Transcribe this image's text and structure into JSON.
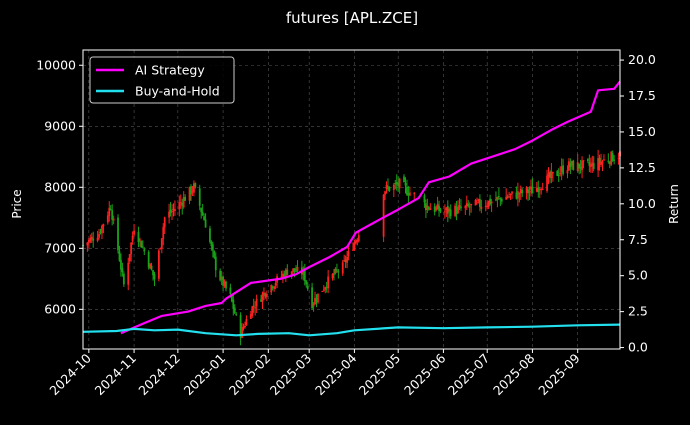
{
  "chart_data": {
    "type": "line",
    "title": "futures [APL.ZCE]",
    "ylabel": "Price",
    "y2label": "Return",
    "x_start": "2024-09-27",
    "x_end": "2025-09-30",
    "ylim": [
      5350,
      10250
    ],
    "y2lim": [
      -0.1,
      20.7
    ],
    "x_ticks": [
      "2024-10",
      "2024-11",
      "2024-12",
      "2025-01",
      "2025-02",
      "2025-03",
      "2025-04",
      "2025-05",
      "2025-06",
      "2025-07",
      "2025-08",
      "2025-09"
    ],
    "x_tick_dates": [
      "2024-10-01",
      "2024-11-01",
      "2024-12-01",
      "2025-01-01",
      "2025-02-01",
      "2025-03-01",
      "2025-04-01",
      "2025-05-01",
      "2025-06-01",
      "2025-07-01",
      "2025-08-01",
      "2025-09-01"
    ],
    "y_ticks": [
      6000,
      7000,
      8000,
      9000,
      10000
    ],
    "y2_ticks": [
      0.0,
      2.5,
      5.0,
      7.5,
      10.0,
      12.5,
      15.0,
      17.5,
      20.0
    ],
    "y2_tick_labels": [
      "0.0",
      "2.5",
      "5.0",
      "7.5",
      "10.0",
      "12.5",
      "15.0",
      "17.5",
      "20.0"
    ],
    "grid": true,
    "legend_position": "top-left",
    "price_anchors": [
      {
        "date": "2024-09-27",
        "value": 7050
      },
      {
        "date": "2024-10-08",
        "value": 7250
      },
      {
        "date": "2024-10-16",
        "value": 7700
      },
      {
        "date": "2024-10-25",
        "value": 6400
      },
      {
        "date": "2024-11-01",
        "value": 7350
      },
      {
        "date": "2024-11-08",
        "value": 6950
      },
      {
        "date": "2024-11-15",
        "value": 6500
      },
      {
        "date": "2024-11-22",
        "value": 7500
      },
      {
        "date": "2024-12-01",
        "value": 7700
      },
      {
        "date": "2024-12-12",
        "value": 8000
      },
      {
        "date": "2024-12-20",
        "value": 7400
      },
      {
        "date": "2024-12-28",
        "value": 6600
      },
      {
        "date": "2025-01-06",
        "value": 6200
      },
      {
        "date": "2025-01-13",
        "value": 5600
      },
      {
        "date": "2025-01-20",
        "value": 6000
      },
      {
        "date": "2025-02-01",
        "value": 6350
      },
      {
        "date": "2025-02-15",
        "value": 6650
      },
      {
        "date": "2025-02-25",
        "value": 6600
      },
      {
        "date": "2025-03-03",
        "value": 6100
      },
      {
        "date": "2025-03-15",
        "value": 6500
      },
      {
        "date": "2025-03-24",
        "value": 6700
      },
      {
        "date": "2025-04-02",
        "value": 7150
      },
      {
        "date": "2025-04-20",
        "value": 7950
      },
      {
        "date": "2025-05-02",
        "value": 8050
      },
      {
        "date": "2025-05-10",
        "value": 7900
      },
      {
        "date": "2025-05-20",
        "value": 7700
      },
      {
        "date": "2025-06-01",
        "value": 7600
      },
      {
        "date": "2025-06-15",
        "value": 7650
      },
      {
        "date": "2025-07-01",
        "value": 7750
      },
      {
        "date": "2025-07-15",
        "value": 7850
      },
      {
        "date": "2025-08-01",
        "value": 7950
      },
      {
        "date": "2025-08-10",
        "value": 8100
      },
      {
        "date": "2025-08-25",
        "value": 8350
      },
      {
        "date": "2025-09-10",
        "value": 8350
      },
      {
        "date": "2025-09-30",
        "value": 8550
      }
    ],
    "price_gaps": [
      [
        "2025-04-05",
        "2025-04-20"
      ],
      [
        "2025-05-13",
        "2025-05-18"
      ]
    ],
    "series": [
      {
        "name": "AI Strategy",
        "color": "#ff00ff",
        "axis": "right",
        "points": [
          {
            "date": "2024-10-23",
            "value": 1.0
          },
          {
            "date": "2024-11-08",
            "value": 1.7
          },
          {
            "date": "2024-11-20",
            "value": 2.2
          },
          {
            "date": "2024-12-08",
            "value": 2.5
          },
          {
            "date": "2024-12-20",
            "value": 2.9
          },
          {
            "date": "2024-12-31",
            "value": 3.1
          },
          {
            "date": "2025-01-03",
            "value": 3.4
          },
          {
            "date": "2025-01-20",
            "value": 4.5
          },
          {
            "date": "2025-02-10",
            "value": 4.8
          },
          {
            "date": "2025-02-20",
            "value": 5.1
          },
          {
            "date": "2025-03-01",
            "value": 5.6
          },
          {
            "date": "2025-03-15",
            "value": 6.3
          },
          {
            "date": "2025-03-27",
            "value": 7.0
          },
          {
            "date": "2025-04-02",
            "value": 8.0
          },
          {
            "date": "2025-04-20",
            "value": 9.0
          },
          {
            "date": "2025-05-01",
            "value": 9.6
          },
          {
            "date": "2025-05-15",
            "value": 10.4
          },
          {
            "date": "2025-05-22",
            "value": 11.5
          },
          {
            "date": "2025-06-05",
            "value": 11.9
          },
          {
            "date": "2025-06-20",
            "value": 12.8
          },
          {
            "date": "2025-07-05",
            "value": 13.3
          },
          {
            "date": "2025-07-20",
            "value": 13.8
          },
          {
            "date": "2025-08-01",
            "value": 14.4
          },
          {
            "date": "2025-08-15",
            "value": 15.2
          },
          {
            "date": "2025-08-25",
            "value": 15.7
          },
          {
            "date": "2025-09-10",
            "value": 16.4
          },
          {
            "date": "2025-09-15",
            "value": 17.9
          },
          {
            "date": "2025-09-26",
            "value": 18.0
          },
          {
            "date": "2025-09-30",
            "value": 18.5
          }
        ]
      },
      {
        "name": "Buy-and-Hold",
        "color": "#22e0ee",
        "axis": "right",
        "points": [
          {
            "date": "2024-09-27",
            "value": 1.1
          },
          {
            "date": "2024-10-20",
            "value": 1.15
          },
          {
            "date": "2024-11-01",
            "value": 1.3
          },
          {
            "date": "2024-11-15",
            "value": 1.2
          },
          {
            "date": "2024-12-01",
            "value": 1.25
          },
          {
            "date": "2024-12-20",
            "value": 1.0
          },
          {
            "date": "2025-01-10",
            "value": 0.85
          },
          {
            "date": "2025-01-25",
            "value": 0.95
          },
          {
            "date": "2025-02-15",
            "value": 1.0
          },
          {
            "date": "2025-03-01",
            "value": 0.85
          },
          {
            "date": "2025-03-20",
            "value": 1.0
          },
          {
            "date": "2025-04-01",
            "value": 1.2
          },
          {
            "date": "2025-05-01",
            "value": 1.4
          },
          {
            "date": "2025-06-01",
            "value": 1.35
          },
          {
            "date": "2025-07-01",
            "value": 1.4
          },
          {
            "date": "2025-08-01",
            "value": 1.45
          },
          {
            "date": "2025-09-01",
            "value": 1.55
          },
          {
            "date": "2025-09-30",
            "value": 1.6
          }
        ]
      }
    ]
  }
}
